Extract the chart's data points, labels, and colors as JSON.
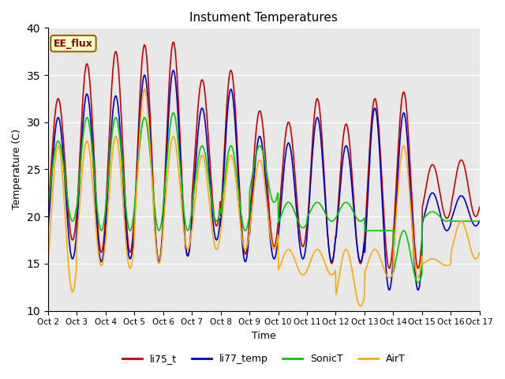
{
  "title": "Instument Temperatures",
  "xlabel": "Time",
  "ylabel": "Temperature (C)",
  "ylim": [
    10,
    40
  ],
  "xlim_days": 15,
  "xtick_labels": [
    "Oct 2",
    "Oct 3",
    "Oct 4",
    "Oct 5",
    "Oct 6",
    "Oct 7",
    "Oct 8",
    "Oct 9",
    "Oct 10",
    "Oct 11",
    "Oct 12",
    "Oct 13",
    "Oct 14",
    "Oct 15",
    "Oct 16",
    "Oct 17"
  ],
  "background_color": "#e8e8e8",
  "legend_items": [
    "li75_t",
    "li77_temp",
    "SonicT",
    "AirT"
  ],
  "legend_colors": [
    "#cc0000",
    "#0000cc",
    "#00cc00",
    "#ffaa00"
  ],
  "annotation_text": "EE_flux",
  "annotation_bg": "#ffffcc",
  "annotation_border": "#996600",
  "grid_color": "#ffffff",
  "ytick_positions": [
    10,
    15,
    20,
    25,
    30,
    35,
    40
  ],
  "day_peaks_li75": [
    32.5,
    36.2,
    37.5,
    38.2,
    38.5,
    34.5,
    35.5,
    31.2,
    30.0,
    32.5,
    29.8,
    32.5,
    33.2,
    25.5,
    26.0
  ],
  "day_troughs_li75": [
    17.5,
    16.2,
    16.2,
    15.2,
    15.8,
    19.0,
    16.0,
    16.8,
    16.8,
    15.0,
    15.0,
    14.5,
    14.5,
    19.8,
    20.0
  ],
  "day_peaks_li77": [
    30.5,
    33.0,
    32.8,
    35.0,
    35.5,
    31.5,
    33.5,
    28.5,
    27.8,
    30.5,
    27.5,
    31.5,
    31.0,
    22.5,
    22.2
  ],
  "day_troughs_li77": [
    15.5,
    15.2,
    15.5,
    15.2,
    15.8,
    17.5,
    15.2,
    15.5,
    15.5,
    15.2,
    15.2,
    12.2,
    12.2,
    18.5,
    19.0
  ],
  "day_peaks_sonic": [
    28.0,
    30.5,
    30.5,
    30.5,
    31.0,
    27.5,
    27.5,
    27.5,
    21.5,
    21.5,
    21.5,
    18.5,
    18.5,
    20.5,
    19.5
  ],
  "day_troughs_sonic": [
    19.5,
    18.5,
    18.5,
    18.5,
    18.5,
    19.5,
    18.5,
    21.5,
    18.8,
    19.5,
    19.5,
    18.5,
    13.0,
    19.5,
    19.5
  ],
  "day_peaks_air": [
    27.5,
    28.0,
    28.5,
    33.5,
    28.5,
    26.5,
    26.5,
    26.0,
    16.5,
    16.5,
    16.5,
    16.5,
    27.5,
    15.5,
    19.5
  ],
  "day_troughs_air": [
    12.0,
    14.8,
    14.5,
    15.0,
    16.5,
    16.5,
    16.5,
    16.5,
    13.8,
    13.8,
    10.5,
    13.5,
    13.5,
    14.8,
    15.5
  ]
}
